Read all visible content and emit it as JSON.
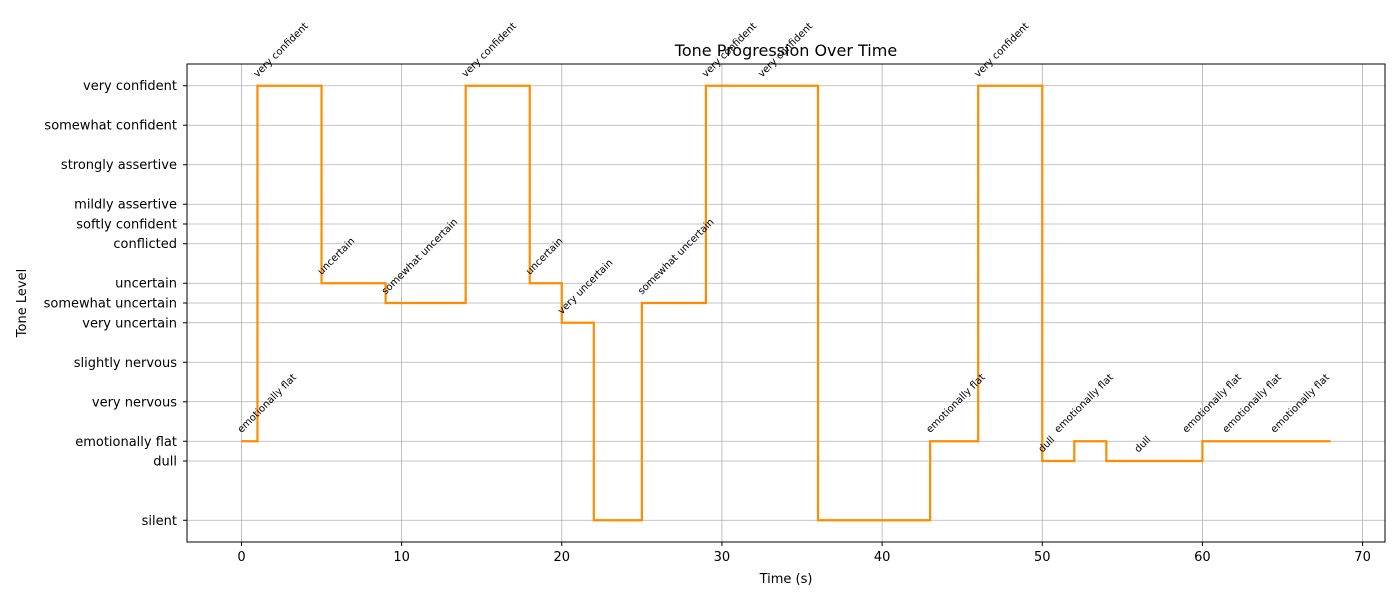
{
  "chart_data": {
    "type": "line",
    "drawstyle": "steps-post",
    "title": "Tone Progression Over Time",
    "xlabel": "Time (s)",
    "ylabel": "Tone Level",
    "xlim": [
      -3.4,
      71.4
    ],
    "x_ticks": [
      0,
      10,
      20,
      30,
      40,
      50,
      60,
      70
    ],
    "y_levels": [
      {
        "label": "silent",
        "value": 0
      },
      {
        "label": "dull",
        "value": 3
      },
      {
        "label": "emotionally flat",
        "value": 4
      },
      {
        "label": "very nervous",
        "value": 6
      },
      {
        "label": "slightly nervous",
        "value": 8
      },
      {
        "label": "very uncertain",
        "value": 10
      },
      {
        "label": "somewhat uncertain",
        "value": 11
      },
      {
        "label": "uncertain",
        "value": 12
      },
      {
        "label": "conflicted",
        "value": 14
      },
      {
        "label": "softly confident",
        "value": 15
      },
      {
        "label": "mildly assertive",
        "value": 16
      },
      {
        "label": "strongly assertive",
        "value": 18
      },
      {
        "label": "somewhat confident",
        "value": 20
      },
      {
        "label": "very confident",
        "value": 22
      }
    ],
    "grid": true,
    "line_color": "#ff8c00",
    "points": [
      {
        "x": 0,
        "tone": "emotionally flat"
      },
      {
        "x": 1,
        "tone": "very confident"
      },
      {
        "x": 5,
        "tone": "uncertain"
      },
      {
        "x": 9,
        "tone": "somewhat uncertain"
      },
      {
        "x": 14,
        "tone": "very confident"
      },
      {
        "x": 18,
        "tone": "uncertain"
      },
      {
        "x": 20,
        "tone": "very uncertain"
      },
      {
        "x": 22,
        "tone": "silent"
      },
      {
        "x": 25,
        "tone": "somewhat uncertain"
      },
      {
        "x": 29,
        "tone": "very confident"
      },
      {
        "x": 32.5,
        "tone": "very confident"
      },
      {
        "x": 36,
        "tone": "silent"
      },
      {
        "x": 43,
        "tone": "emotionally flat"
      },
      {
        "x": 46,
        "tone": "very confident"
      },
      {
        "x": 50,
        "tone": "dull"
      },
      {
        "x": 52,
        "tone": "emotionally flat"
      },
      {
        "x": 54,
        "tone": "dull"
      },
      {
        "x": 60,
        "tone": "emotionally flat"
      },
      {
        "x": 62.5,
        "tone": "emotionally flat"
      },
      {
        "x": 65.5,
        "tone": "emotionally flat"
      },
      {
        "x": 68,
        "tone": "emotionally flat"
      }
    ],
    "annotations": [
      {
        "x": 0,
        "tone": "emotionally flat",
        "text": "emotionally flat"
      },
      {
        "x": 1,
        "tone": "very confident",
        "text": "very confident"
      },
      {
        "x": 5,
        "tone": "uncertain",
        "text": "uncertain"
      },
      {
        "x": 9,
        "tone": "somewhat uncertain",
        "text": "somewhat uncertain"
      },
      {
        "x": 14,
        "tone": "very confident",
        "text": "very confident"
      },
      {
        "x": 18,
        "tone": "uncertain",
        "text": "uncertain"
      },
      {
        "x": 20,
        "tone": "very uncertain",
        "text": "very uncertain"
      },
      {
        "x": 25,
        "tone": "somewhat uncertain",
        "text": "somewhat uncertain"
      },
      {
        "x": 29,
        "tone": "very confident",
        "text": "very confident"
      },
      {
        "x": 32.5,
        "tone": "very confident",
        "text": "very confident"
      },
      {
        "x": 43,
        "tone": "emotionally flat",
        "text": "emotionally flat"
      },
      {
        "x": 46,
        "tone": "very confident",
        "text": "very confident"
      },
      {
        "x": 50,
        "tone": "dull",
        "text": "dull"
      },
      {
        "x": 51,
        "tone": "emotionally flat",
        "text": "emotionally flat"
      },
      {
        "x": 56,
        "tone": "dull",
        "text": "dull"
      },
      {
        "x": 59,
        "tone": "emotionally flat",
        "text": "emotionally flat"
      },
      {
        "x": 61.5,
        "tone": "emotionally flat",
        "text": "emotionally flat"
      },
      {
        "x": 64.5,
        "tone": "emotionally flat",
        "text": "emotionally flat"
      }
    ]
  }
}
